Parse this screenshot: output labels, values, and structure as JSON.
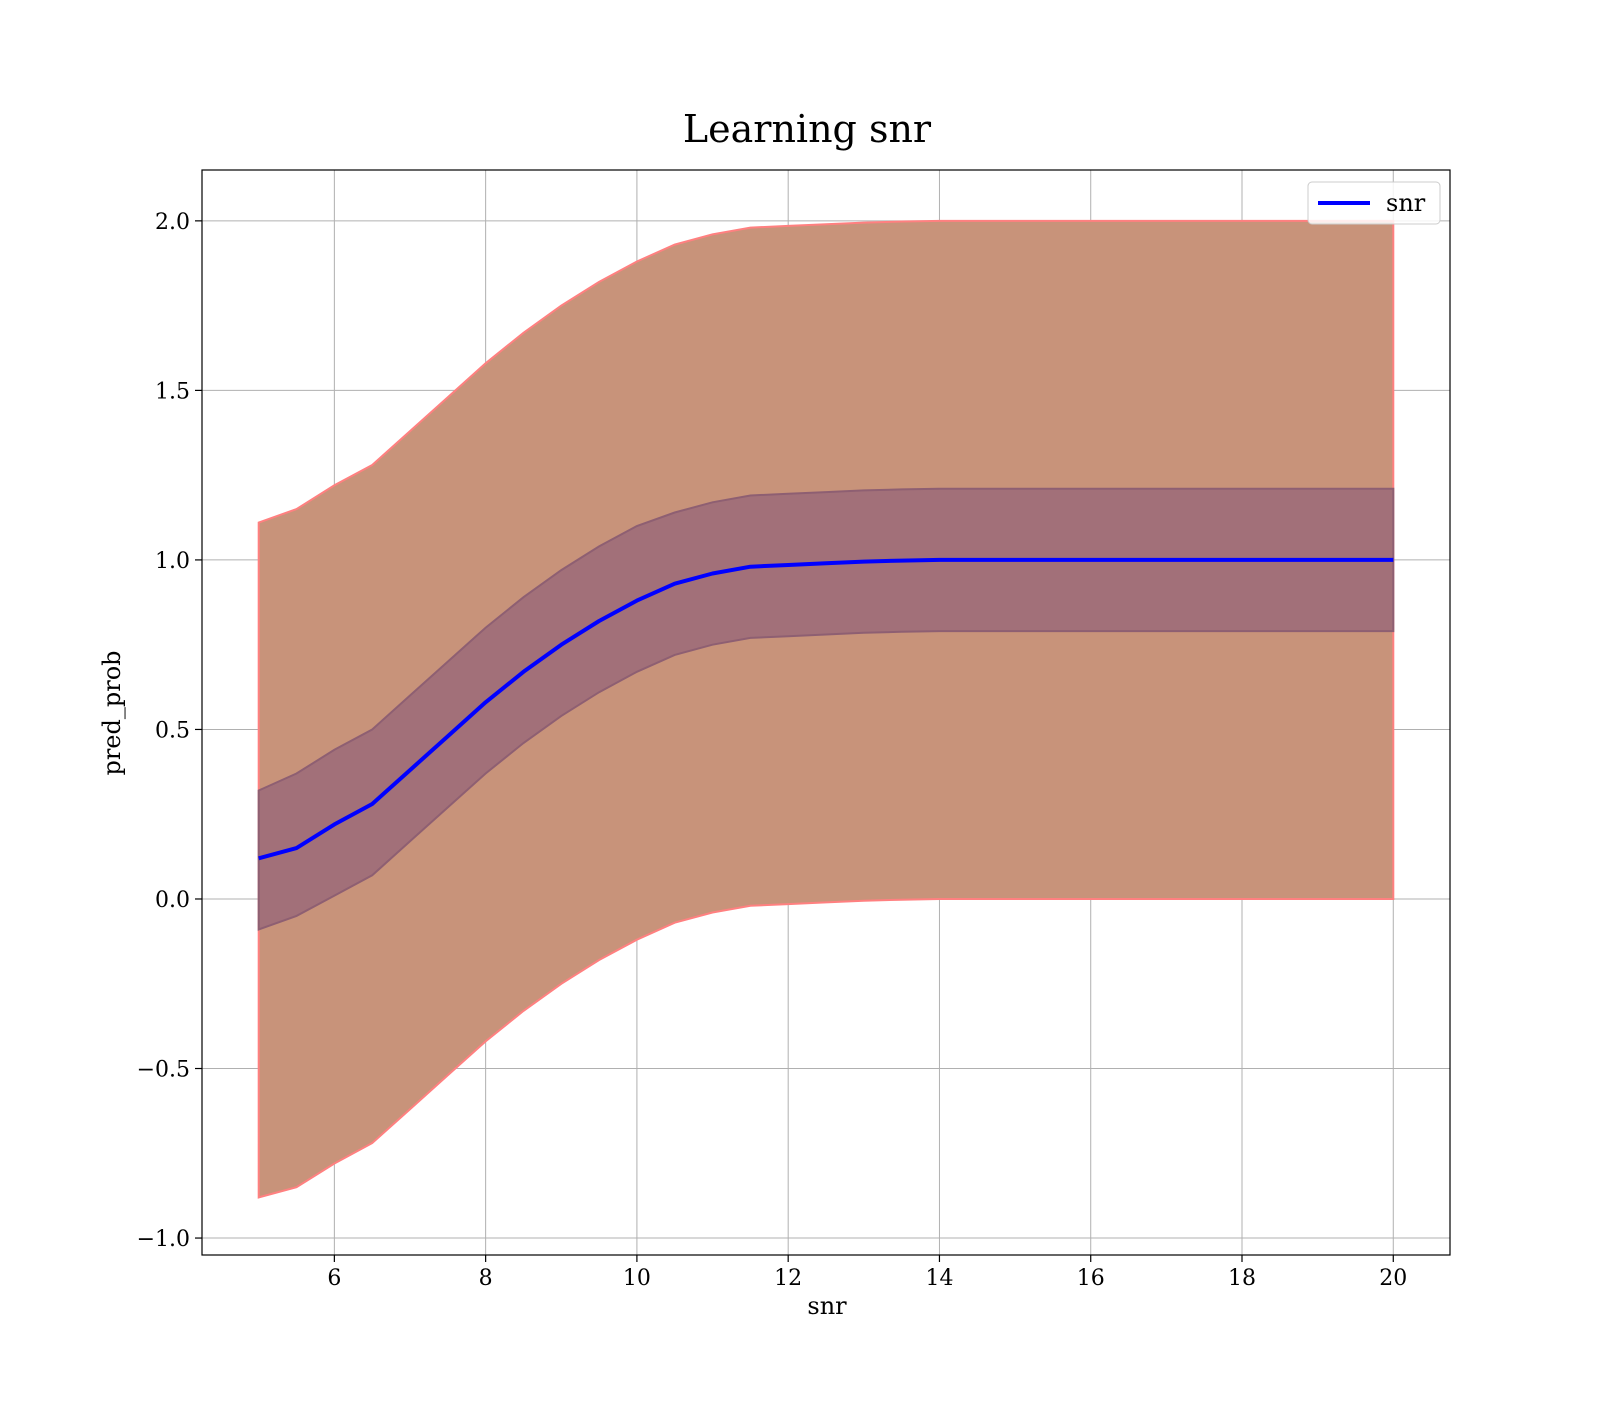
{
  "chart_data": {
    "type": "line",
    "title": "Learning snr",
    "xlabel": "snr",
    "ylabel": "pred_prob",
    "xlim": [
      4.25,
      20.75
    ],
    "ylim": [
      -1.05,
      2.15
    ],
    "xticks": [
      6,
      8,
      10,
      12,
      14,
      16,
      18,
      20
    ],
    "xtick_labels": [
      "6",
      "8",
      "10",
      "12",
      "14",
      "16",
      "18",
      "20"
    ],
    "yticks": [
      -1.0,
      -0.5,
      0.0,
      0.5,
      1.0,
      1.5,
      2.0
    ],
    "ytick_labels": [
      "−1.0",
      "−0.5",
      "0.0",
      "0.5",
      "1.0",
      "1.5",
      "2.0"
    ],
    "grid": true,
    "legend": {
      "placement": "top-right",
      "entries": [
        "snr"
      ]
    },
    "series": [
      {
        "name": "snr",
        "color": "#0000ff",
        "x": [
          5,
          5.5,
          6,
          6.5,
          7,
          7.5,
          8,
          8.5,
          9,
          9.5,
          10,
          10.5,
          11,
          11.5,
          12,
          12.5,
          13,
          13.5,
          14,
          15,
          16,
          17,
          18,
          19,
          20
        ],
        "y": [
          0.12,
          0.15,
          0.22,
          0.28,
          0.38,
          0.48,
          0.58,
          0.67,
          0.75,
          0.82,
          0.88,
          0.93,
          0.96,
          0.98,
          0.985,
          0.99,
          0.995,
          0.998,
          1.0,
          1.0,
          1.0,
          1.0,
          1.0,
          1.0,
          1.0
        ]
      }
    ],
    "bands": [
      {
        "color": "#c8937a",
        "edge_color": "#ff8080",
        "x": [
          5,
          5.5,
          6,
          6.5,
          7,
          7.5,
          8,
          8.5,
          9,
          9.5,
          10,
          10.5,
          11,
          11.5,
          12,
          12.5,
          13,
          13.5,
          14,
          15,
          16,
          17,
          18,
          19,
          20
        ],
        "upper": [
          1.11,
          1.15,
          1.22,
          1.28,
          1.38,
          1.48,
          1.58,
          1.67,
          1.75,
          1.82,
          1.88,
          1.93,
          1.96,
          1.98,
          1.985,
          1.99,
          1.995,
          1.998,
          2.0,
          2.0,
          2.0,
          2.0,
          2.0,
          2.0,
          2.0
        ],
        "lower": [
          -0.88,
          -0.85,
          -0.78,
          -0.72,
          -0.62,
          -0.52,
          -0.42,
          -0.33,
          -0.25,
          -0.18,
          -0.12,
          -0.07,
          -0.04,
          -0.02,
          -0.015,
          -0.01,
          -0.005,
          -0.002,
          0.0,
          0.0,
          0.0,
          0.0,
          0.0,
          0.0,
          0.0
        ]
      },
      {
        "color": "#a27079",
        "edge_color": "#8e5f72",
        "x": [
          5,
          5.5,
          6,
          6.5,
          7,
          7.5,
          8,
          8.5,
          9,
          9.5,
          10,
          10.5,
          11,
          11.5,
          12,
          12.5,
          13,
          13.5,
          14,
          15,
          16,
          17,
          18,
          19,
          20
        ],
        "upper": [
          0.32,
          0.37,
          0.44,
          0.5,
          0.6,
          0.7,
          0.8,
          0.89,
          0.97,
          1.04,
          1.1,
          1.14,
          1.17,
          1.19,
          1.195,
          1.2,
          1.205,
          1.208,
          1.21,
          1.21,
          1.21,
          1.21,
          1.21,
          1.21,
          1.21
        ],
        "lower": [
          -0.09,
          -0.05,
          0.01,
          0.07,
          0.17,
          0.27,
          0.37,
          0.46,
          0.54,
          0.61,
          0.67,
          0.72,
          0.75,
          0.77,
          0.775,
          0.78,
          0.785,
          0.788,
          0.79,
          0.79,
          0.79,
          0.79,
          0.79,
          0.79,
          0.79
        ]
      }
    ]
  }
}
